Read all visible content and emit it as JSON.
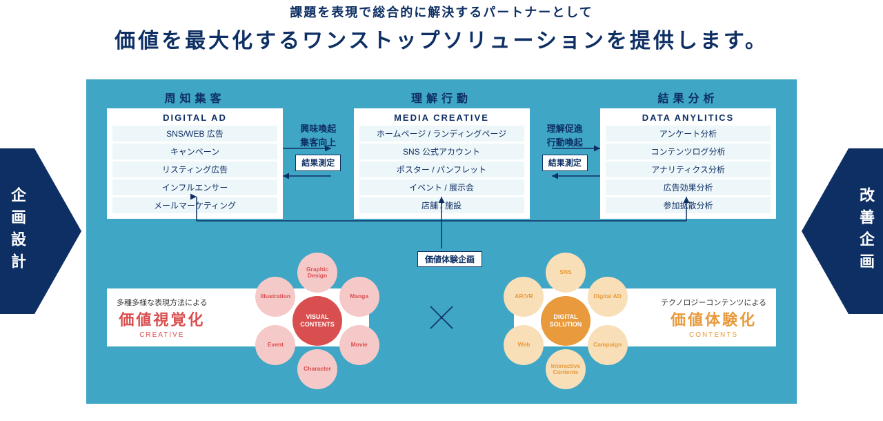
{
  "header": {
    "subtitle": "課題を表現で総合的に解決するパートナーとして",
    "title": "価値を最大化するワンストップソリューションを提供します。"
  },
  "left_tab": "企画設計",
  "right_tab": "改善企画",
  "columns": [
    {
      "heading": "周知集客",
      "card_title": "DIGITAL AD",
      "items": [
        "SNS/WEB 広告",
        "キャンペーン",
        "リスティング広告",
        "インフルエンサー",
        "メールマーケティング"
      ]
    },
    {
      "heading": "理解行動",
      "card_title": "MEDIA CREATIVE",
      "items": [
        "ホームページ / ランディングページ",
        "SNS 公式アカウント",
        "ポスター / パンフレット",
        "イベント / 展示会",
        "店舗 / 施設"
      ]
    },
    {
      "heading": "結果分析",
      "card_title": "DATA ANYLITICS",
      "items": [
        "アンケート分析",
        "コンテンツログ分析",
        "アナリティクス分析",
        "広告効果分析",
        "参加拡散分析"
      ]
    }
  ],
  "between1": {
    "line1": "興味喚起",
    "line2": "集客向上",
    "tag": "結果測定"
  },
  "between2": {
    "line1": "理解促進",
    "line2": "行動喚起",
    "tag": "結果測定"
  },
  "value_tag": "価値体験企画",
  "left_band": {
    "small": "多種多様な表現方法による",
    "large": "価値視覚化",
    "en": "CREATIVE"
  },
  "right_band": {
    "small": "テクノロジーコンテンツによる",
    "large": "価値体験化",
    "en": "CONTENTS"
  },
  "left_cluster": {
    "center": "VISUAL CONTENTS",
    "petals": [
      "Graphic Design",
      "Manga",
      "Movie",
      "Character",
      "Event",
      "Illustration"
    ]
  },
  "right_cluster": {
    "center": "DIGITAL SOLUTION",
    "petals": [
      "SNS",
      "Digital AD",
      "Campaign",
      "Interactive Contents",
      "Web",
      "AR/VR"
    ]
  },
  "colors": {
    "navy": "#0e2f63",
    "teal": "#3fa6c5",
    "red": "#d94e4e",
    "pink": "#f6c9c9",
    "orange": "#e89a3c",
    "peach": "#f9dfb8"
  }
}
